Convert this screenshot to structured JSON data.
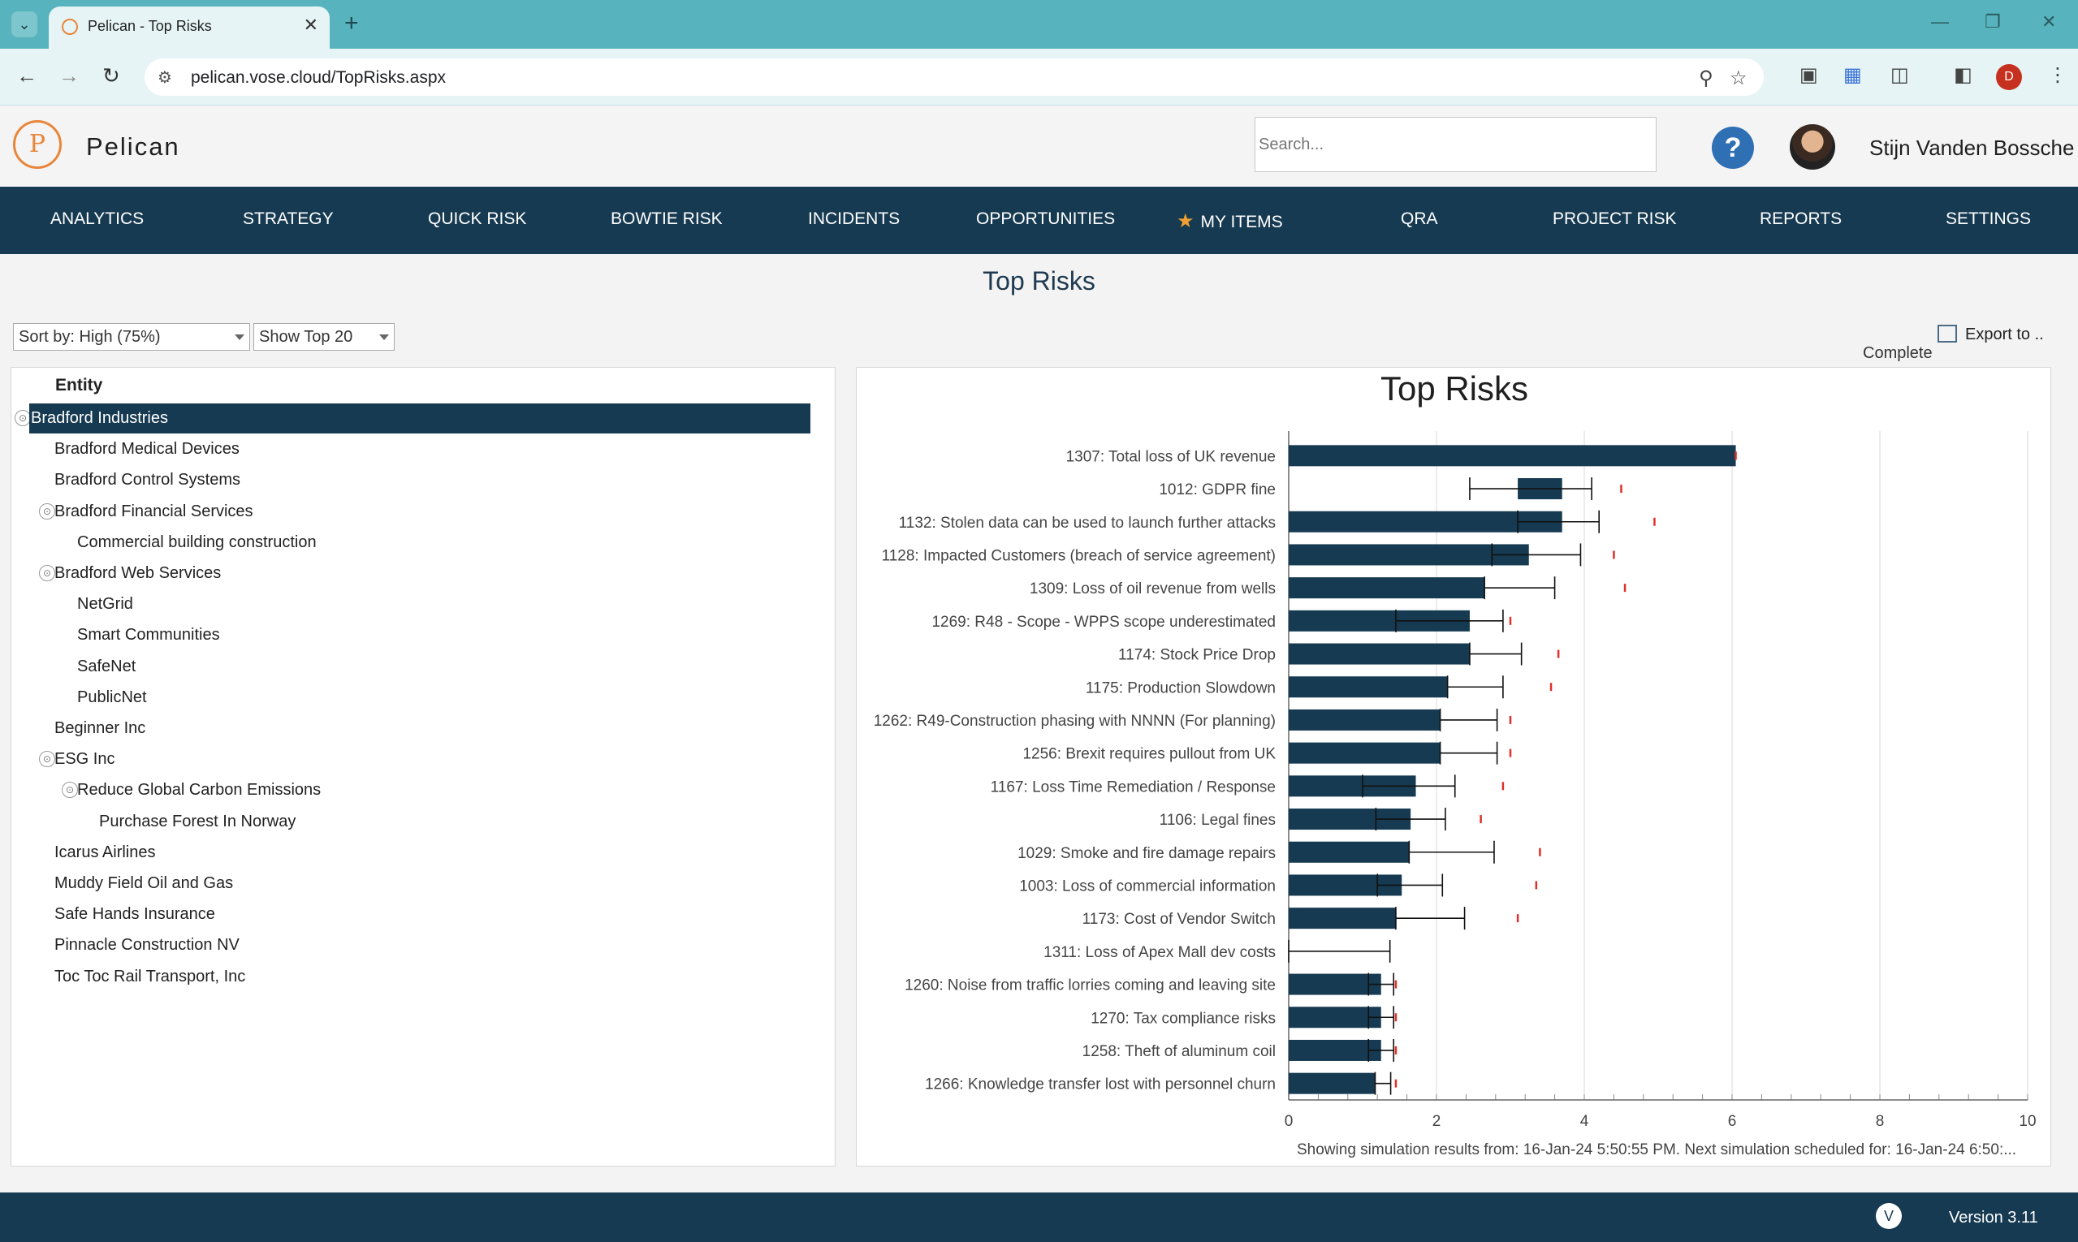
{
  "browser": {
    "tab_title": "Pelican - Top Risks",
    "url": "pelican.vose.cloud/TopRisks.aspx",
    "profile_initial": "D"
  },
  "header": {
    "brand": "Pelican",
    "search_placeholder": "Search...",
    "help_label": "?",
    "username": "Stijn Vanden Bossche"
  },
  "nav": {
    "items": [
      "ANALYTICS",
      "STRATEGY",
      "QUICK RISK",
      "BOWTIE RISK",
      "INCIDENTS",
      "OPPORTUNITIES",
      "MY ITEMS",
      "QRA",
      "PROJECT RISK",
      "REPORTS",
      "SETTINGS"
    ]
  },
  "page": {
    "title": "Top Risks",
    "sort_select": "Sort by: High (75%)",
    "show_select": "Show Top 20",
    "export_label": "Export to ..",
    "status": "Complete"
  },
  "tree": {
    "header": "Entity",
    "items": [
      {
        "label": "Bradford Industries",
        "level": 0,
        "collapsible": true,
        "selected": true
      },
      {
        "label": "Bradford Medical Devices",
        "level": 1,
        "collapsible": false
      },
      {
        "label": "Bradford Control Systems",
        "level": 1,
        "collapsible": false
      },
      {
        "label": "Bradford Financial Services",
        "level": 1,
        "collapsible": true
      },
      {
        "label": "Commercial building construction",
        "level": 2,
        "collapsible": false
      },
      {
        "label": "Bradford Web Services",
        "level": 1,
        "collapsible": true
      },
      {
        "label": "NetGrid",
        "level": 2,
        "collapsible": false
      },
      {
        "label": "Smart Communities",
        "level": 2,
        "collapsible": false
      },
      {
        "label": "SafeNet",
        "level": 2,
        "collapsible": false
      },
      {
        "label": "PublicNet",
        "level": 2,
        "collapsible": false
      },
      {
        "label": "Beginner Inc",
        "level": 1,
        "collapsible": false
      },
      {
        "label": "ESG Inc",
        "level": 1,
        "collapsible": true
      },
      {
        "label": "Reduce Global Carbon Emissions",
        "level": 2,
        "collapsible": true
      },
      {
        "label": "Purchase Forest In Norway",
        "level": 3,
        "collapsible": false
      },
      {
        "label": "Icarus Airlines",
        "level": 1,
        "collapsible": false
      },
      {
        "label": "Muddy Field Oil and Gas",
        "level": 1,
        "collapsible": false
      },
      {
        "label": "Safe Hands Insurance",
        "level": 1,
        "collapsible": false
      },
      {
        "label": "Pinnacle Construction NV",
        "level": 1,
        "collapsible": false
      },
      {
        "label": "Toc Toc Rail Transport, Inc",
        "level": 1,
        "collapsible": false
      }
    ]
  },
  "chart_data": {
    "type": "bar",
    "orientation": "horizontal",
    "title": "Top Risks",
    "xlim": [
      0,
      10
    ],
    "xticks": [
      0,
      2,
      4,
      6,
      8,
      10
    ],
    "grid": true,
    "bar_color": "#163a51",
    "marker_color": "#e0302a",
    "footnote": "Showing simulation results from: 16-Jan-24 5:50:55 PM. Next simulation scheduled for: 16-Jan-24 6:50:...",
    "categories": [
      "1307: Total loss of UK revenue",
      "1012: GDPR fine",
      "1132: Stolen data can be used to launch further attacks",
      "1128: Impacted Customers (breach of service agreement)",
      "1309: Loss of oil revenue from wells",
      "1269: R48 - Scope - WPPS scope underestimated",
      "1174: Stock Price Drop",
      "1175: Production Slowdown",
      "1262: R49-Construction phasing with NNNN (For planning)",
      "1256: Brexit requires pullout from UK",
      "1167: Loss Time Remediation / Response",
      "1106: Legal fines",
      "1029: Smoke and fire damage repairs",
      "1003: Loss of commercial information",
      "1173: Cost of Vendor Switch",
      "1311: Loss of Apex Mall dev costs",
      "1260: Noise from traffic lorries coming and leaving site",
      "1270: Tax compliance risks",
      "1258: Theft of aluminum coil",
      "1266: Knowledge transfer lost with personnel churn"
    ],
    "bar_start": [
      0,
      3.1,
      0,
      0,
      0,
      0,
      0,
      0,
      0,
      0,
      0,
      0,
      0,
      0,
      0,
      0,
      0,
      0,
      0,
      0
    ],
    "values": [
      6.05,
      3.7,
      3.7,
      3.25,
      2.65,
      2.45,
      2.45,
      2.15,
      2.05,
      2.05,
      1.72,
      1.65,
      1.63,
      1.53,
      1.45,
      0,
      1.25,
      1.25,
      1.25,
      1.17
    ],
    "low": [
      6.05,
      2.45,
      3.1,
      2.75,
      2.65,
      1.45,
      2.45,
      2.15,
      2.05,
      2.05,
      1.0,
      1.18,
      1.63,
      1.2,
      1.45,
      0,
      1.08,
      1.08,
      1.08,
      1.17
    ],
    "high": [
      6.05,
      4.1,
      4.2,
      3.95,
      3.6,
      2.9,
      3.15,
      2.9,
      2.82,
      2.82,
      2.25,
      2.12,
      2.78,
      2.08,
      2.38,
      1.37,
      1.42,
      1.42,
      1.42,
      1.38
    ],
    "marker": [
      6.05,
      4.5,
      4.95,
      4.4,
      4.55,
      3.0,
      3.65,
      3.55,
      3.0,
      3.0,
      2.9,
      2.6,
      3.4,
      3.35,
      3.1,
      null,
      1.45,
      1.45,
      1.45,
      1.45
    ]
  }
}
